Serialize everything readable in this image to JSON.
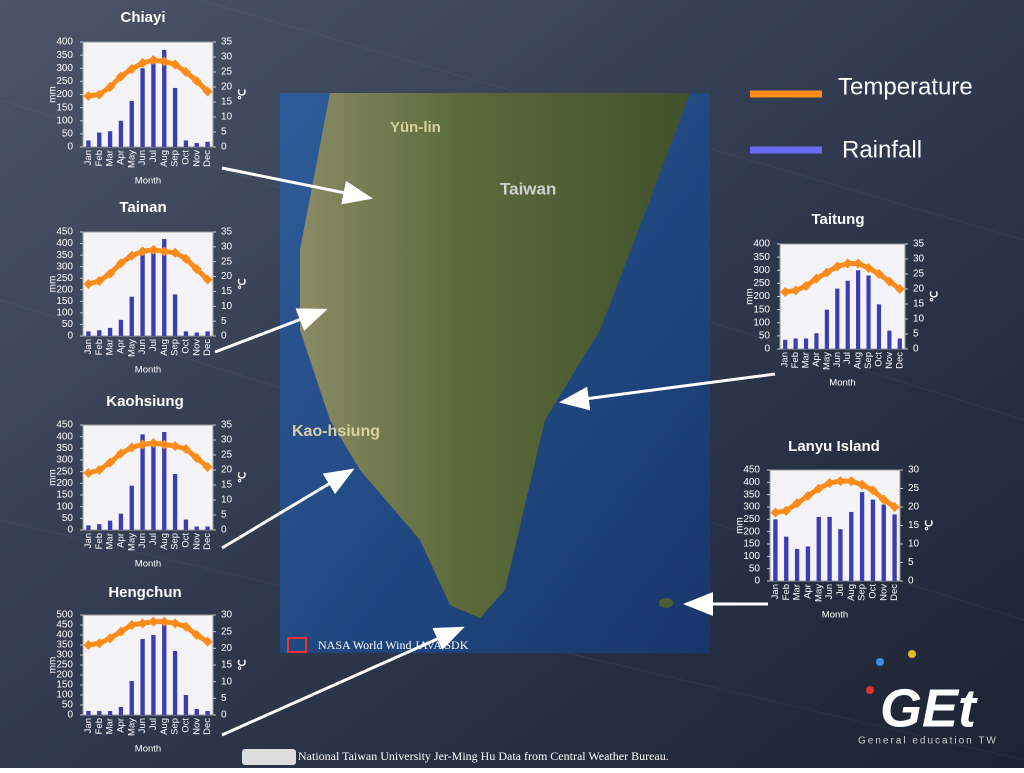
{
  "chart_data": [
    {
      "type": "bar",
      "title": "Chiayi",
      "xlabel": "Month",
      "ylabel": "mm",
      "y2label": "℃",
      "categories": [
        "Jan",
        "Feb",
        "Mar",
        "Apr",
        "May",
        "Jun",
        "Jul",
        "Aug",
        "Sep",
        "Oct",
        "Nov",
        "Dec"
      ],
      "ylim": [
        0,
        400
      ],
      "yticks": [
        0,
        50,
        100,
        150,
        200,
        250,
        300,
        350,
        400
      ],
      "y2lim": [
        0,
        35
      ],
      "y2ticks": [
        0,
        5,
        10,
        15,
        20,
        25,
        30,
        35
      ],
      "series": [
        {
          "color": "#3c3cb4",
          "values": [
            25,
            55,
            60,
            100,
            175,
            300,
            340,
            370,
            225,
            25,
            15,
            20
          ]
        },
        {
          "type": "line",
          "axis": "y2",
          "color": "#ff8c1a",
          "values": [
            17,
            17.5,
            20,
            23.5,
            26,
            28,
            29,
            28.5,
            27.5,
            25,
            22,
            18.5
          ]
        }
      ]
    },
    {
      "type": "bar",
      "title": "Tainan",
      "xlabel": "Month",
      "ylabel": "mm",
      "y2label": "℃",
      "categories": [
        "Jan",
        "Feb",
        "Mar",
        "Apr",
        "May",
        "Jun",
        "Jul",
        "Aug",
        "Sep",
        "Oct",
        "Nov",
        "Dec"
      ],
      "ylim": [
        0,
        450
      ],
      "yticks": [
        0,
        50,
        100,
        150,
        200,
        250,
        300,
        350,
        400,
        450
      ],
      "y2lim": [
        0,
        35
      ],
      "y2ticks": [
        0,
        5,
        10,
        15,
        20,
        25,
        30,
        35
      ],
      "series": [
        {
          "color": "#3c3cb4",
          "values": [
            20,
            25,
            35,
            70,
            170,
            380,
            380,
            420,
            180,
            20,
            15,
            20
          ]
        },
        {
          "type": "line",
          "axis": "y2",
          "color": "#ff8c1a",
          "values": [
            17.5,
            18.5,
            21,
            24.5,
            27,
            28.5,
            29,
            28.5,
            28,
            26,
            22.5,
            19
          ]
        }
      ]
    },
    {
      "type": "bar",
      "title": "Kaohsiung",
      "xlabel": "Month",
      "ylabel": "mm",
      "y2label": "℃",
      "categories": [
        "Jan",
        "Feb",
        "Mar",
        "Apr",
        "May",
        "Jun",
        "Jul",
        "Aug",
        "Sep",
        "Oct",
        "Nov",
        "Dec"
      ],
      "ylim": [
        0,
        450
      ],
      "yticks": [
        0,
        50,
        100,
        150,
        200,
        250,
        300,
        350,
        400,
        450
      ],
      "y2lim": [
        0,
        35
      ],
      "y2ticks": [
        0,
        5,
        10,
        15,
        20,
        25,
        30,
        35
      ],
      "series": [
        {
          "color": "#3c3cb4",
          "values": [
            20,
            25,
            40,
            70,
            190,
            410,
            380,
            420,
            240,
            45,
            15,
            15
          ]
        },
        {
          "type": "line",
          "axis": "y2",
          "color": "#ff8c1a",
          "values": [
            19,
            20,
            22.5,
            25.5,
            27.5,
            28.5,
            29,
            28.5,
            28,
            27,
            24,
            21
          ]
        }
      ]
    },
    {
      "type": "bar",
      "title": "Hengchun",
      "xlabel": "Month",
      "ylabel": "mm",
      "y2label": "℃",
      "categories": [
        "Jan",
        "Feb",
        "Mar",
        "Apr",
        "May",
        "Jun",
        "Jul",
        "Aug",
        "Sep",
        "Oct",
        "Nov",
        "Dec"
      ],
      "ylim": [
        0,
        500
      ],
      "yticks": [
        0,
        50,
        100,
        150,
        200,
        250,
        300,
        350,
        400,
        450,
        500
      ],
      "y2lim": [
        0,
        30
      ],
      "y2ticks": [
        0,
        5,
        10,
        15,
        20,
        25,
        30
      ],
      "series": [
        {
          "color": "#3c3cb4",
          "values": [
            20,
            20,
            20,
            40,
            170,
            380,
            400,
            470,
            320,
            100,
            30,
            20
          ]
        },
        {
          "type": "line",
          "axis": "y2",
          "color": "#ff8c1a",
          "values": [
            21,
            21.5,
            23,
            25,
            27,
            27.5,
            28,
            28,
            27.5,
            26.5,
            24,
            22
          ]
        }
      ]
    },
    {
      "type": "bar",
      "title": "Taitung",
      "xlabel": "Month",
      "ylabel": "mm",
      "y2label": "℃",
      "categories": [
        "Jan",
        "Feb",
        "Mar",
        "Apr",
        "May",
        "Jun",
        "Jul",
        "Aug",
        "Sep",
        "Oct",
        "Nov",
        "Dec"
      ],
      "ylim": [
        0,
        400
      ],
      "yticks": [
        0,
        50,
        100,
        150,
        200,
        250,
        300,
        350,
        400
      ],
      "y2lim": [
        0,
        35
      ],
      "y2ticks": [
        0,
        5,
        10,
        15,
        20,
        25,
        30,
        35
      ],
      "series": [
        {
          "color": "#3c3cb4",
          "values": [
            35,
            40,
            40,
            60,
            150,
            230,
            260,
            300,
            280,
            170,
            70,
            40
          ]
        },
        {
          "type": "line",
          "axis": "y2",
          "color": "#ff8c1a",
          "values": [
            19,
            19.5,
            21,
            23.5,
            25.5,
            27.5,
            28.5,
            28.5,
            27,
            25,
            22.5,
            20
          ]
        }
      ]
    },
    {
      "type": "bar",
      "title": "Lanyu Island",
      "xlabel": "Month",
      "ylabel": "mm",
      "y2label": "℃",
      "categories": [
        "Jan",
        "Feb",
        "Mar",
        "Apr",
        "May",
        "Jun",
        "Jul",
        "Aug",
        "Sep",
        "Oct",
        "Nov",
        "Dec"
      ],
      "ylim": [
        0,
        450
      ],
      "yticks": [
        0,
        50,
        100,
        150,
        200,
        250,
        300,
        350,
        400,
        450
      ],
      "y2lim": [
        0,
        30
      ],
      "y2ticks": [
        0,
        5,
        10,
        15,
        20,
        25,
        30
      ],
      "series": [
        {
          "color": "#3c3cb4",
          "values": [
            250,
            180,
            130,
            140,
            260,
            260,
            210,
            280,
            360,
            330,
            310,
            270
          ]
        },
        {
          "type": "line",
          "axis": "y2",
          "color": "#ff8c1a",
          "values": [
            18.5,
            19,
            21,
            23,
            25,
            26.5,
            27,
            27,
            26,
            24.5,
            22,
            20
          ]
        }
      ]
    }
  ],
  "legend": [
    {
      "name": "Temperature",
      "color": "#ff8c1a"
    },
    {
      "name": "Rainfall",
      "color": "#6a6af0"
    }
  ],
  "map": {
    "labels": [
      "Yün-lin",
      "Taiwan",
      "Kao-hsiung"
    ],
    "credit": "NASA World Wind JAVA SDK"
  },
  "footer": "National Taiwan University Jer-Ming Hu Data from Central Weather Bureau.",
  "logo": {
    "mark": "GEt",
    "tagline": "General education TW"
  }
}
